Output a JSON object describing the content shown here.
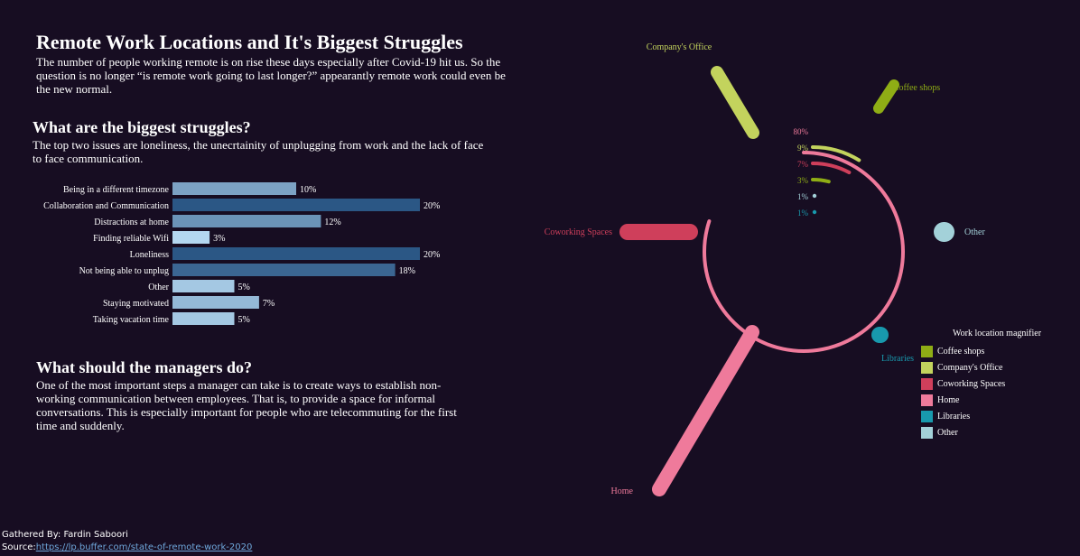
{
  "header": {
    "title": "Remote Work Locations and It's Biggest Struggles",
    "intro": "The number of people working remote is on rise these days especially after Covid-19 hit us. So the question is no longer “is remote work going to last longer?” appearantly remote work could even be the new normal."
  },
  "struggles": {
    "heading": "What are the biggest struggles?",
    "text": "The top two issues are loneliness, the unecrtainity of unplugging from work and the lack of face to face communication."
  },
  "managers": {
    "heading": "What should the managers do?",
    "text": "One of the most important steps a manager can take is to create ways to establish non-working communication between employees. That is, to provide a space for informal conversations. This is especially important for people who are telecommuting for the first time and suddenly."
  },
  "footer": {
    "gathered_by": "Gathered By: Fardin Saboori",
    "source_label": "Source:",
    "source_url": "https://lp.buffer.com/state-of-remote-work-2020"
  },
  "legend": {
    "title": "Work location magnifier",
    "items": [
      {
        "label": "Coffee shops",
        "color": "#8fad15"
      },
      {
        "label": "Company's Office",
        "color": "#c3d35d"
      },
      {
        "label": "Coworking Spaces",
        "color": "#cf3f5b"
      },
      {
        "label": "Home",
        "color": "#ef7a9b"
      },
      {
        "label": "Libraries",
        "color": "#1899ad"
      },
      {
        "label": "Other",
        "color": "#a3d1d9"
      }
    ]
  },
  "chart_data": [
    {
      "type": "bar",
      "orientation": "horizontal",
      "categories": [
        "Being in a different timezone",
        "Collaboration and Communication",
        "Distractions at home",
        "Finding reliable Wifi",
        "Loneliness",
        "Not being able to unplug",
        "Other",
        "Staying motivated",
        "Taking vacation time"
      ],
      "values": [
        10,
        20,
        12,
        3,
        20,
        18,
        5,
        7,
        5
      ],
      "value_labels": [
        "10%",
        "20%",
        "12%",
        "3%",
        "20%",
        "18%",
        "5%",
        "7%",
        "5%"
      ],
      "color_scale": {
        "low": "#b4d7f0",
        "high": "#2b5785"
      }
    },
    {
      "type": "radial",
      "series": [
        {
          "name": "Home",
          "value": 80,
          "label": "80%",
          "color": "#ef7a9b"
        },
        {
          "name": "Company's Office",
          "value": 9,
          "label": "9%",
          "color": "#c3d35d"
        },
        {
          "name": "Coworking Spaces",
          "value": 7,
          "label": "7%",
          "color": "#cf3f5b"
        },
        {
          "name": "Coffee shops",
          "value": 3,
          "label": "3%",
          "color": "#8fad15"
        },
        {
          "name": "Other",
          "value": 1,
          "label": "1%",
          "color": "#a3d1d9"
        },
        {
          "name": "Libraries",
          "value": 1,
          "label": "1%",
          "color": "#1899ad"
        }
      ]
    }
  ]
}
